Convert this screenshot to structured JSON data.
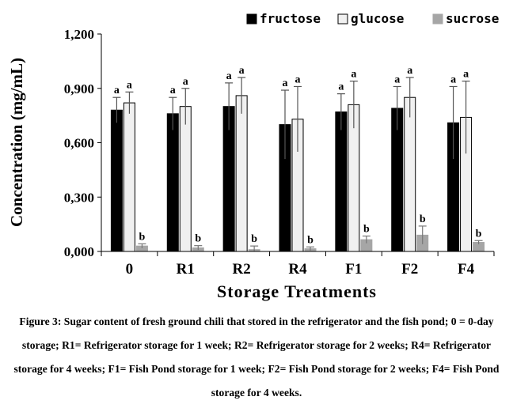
{
  "chart_data": {
    "type": "bar",
    "xlabel": "Storage Treatments",
    "ylabel": "Concentration (mg/mL)",
    "ylim": [
      0,
      1.2
    ],
    "yticks": [
      0,
      0.3,
      0.6,
      0.9,
      1.2
    ],
    "ytick_labels": [
      "0,000",
      "0,300",
      "0,600",
      "0,900",
      "1,200"
    ],
    "categories": [
      "0",
      "R1",
      "R2",
      "R4",
      "F1",
      "F2",
      "F4"
    ],
    "legend_position": "top-right",
    "series": [
      {
        "name": "fructose",
        "color": "#000000",
        "values": [
          0.78,
          0.76,
          0.8,
          0.7,
          0.77,
          0.79,
          0.71
        ],
        "errors": [
          0.07,
          0.09,
          0.13,
          0.19,
          0.1,
          0.12,
          0.2
        ],
        "labels": [
          "a",
          "a",
          "a",
          "a",
          "a",
          "a",
          "a"
        ]
      },
      {
        "name": "glucose",
        "color": "#f0f0f0",
        "values": [
          0.82,
          0.8,
          0.86,
          0.73,
          0.81,
          0.85,
          0.74
        ],
        "errors": [
          0.06,
          0.1,
          0.1,
          0.18,
          0.13,
          0.11,
          0.2
        ],
        "labels": [
          "a",
          "a",
          "a",
          "a",
          "a",
          "a",
          "a"
        ]
      },
      {
        "name": "sucrose",
        "color": "#a6a6a6",
        "values": [
          0.03,
          0.02,
          0.01,
          0.015,
          0.065,
          0.09,
          0.05
        ],
        "errors": [
          0.012,
          0.012,
          0.02,
          0.01,
          0.02,
          0.05,
          0.01
        ],
        "labels": [
          "b",
          "b",
          "b",
          "b",
          "b",
          "b",
          "b"
        ]
      }
    ]
  },
  "caption": "Figure 3: Sugar content of fresh ground chili that stored in the refrigerator and the fish pond; 0 = 0-day storage; R1= Refrigerator storage for 1 week; R2= Refrigerator storage for 2 weeks; R4= Refrigerator storage for 4 weeks; F1= Fish Pond storage for 1 week; F2= Fish Pond storage for 2 weeks; F4= Fish Pond storage for 4 weeks."
}
